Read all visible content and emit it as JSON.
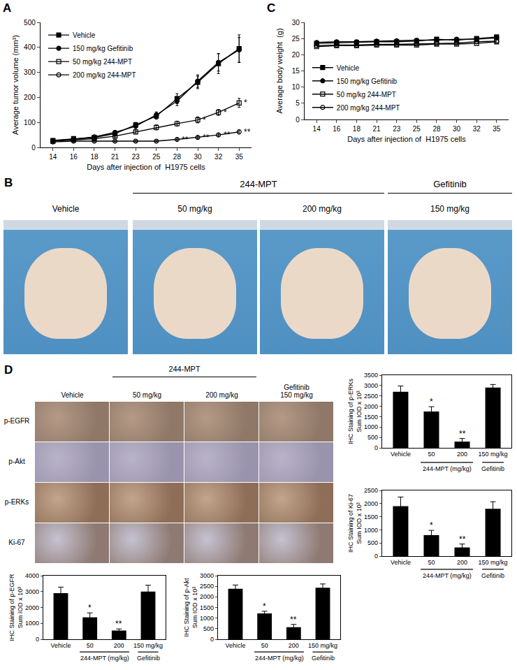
{
  "chart_data": [
    {
      "type": "line",
      "panel": "A",
      "x_label": "Days after injection of  H1975 cells",
      "y_label": "Average tumor volume (mm³)",
      "categories": [
        "14",
        "16",
        "18",
        "21",
        "23",
        "25",
        "28",
        "30",
        "32",
        "35"
      ],
      "ylim": [
        0,
        500
      ],
      "yticks": [
        0,
        100,
        200,
        300,
        400,
        500
      ],
      "legend": "top left",
      "grid": false,
      "series": [
        {
          "name": "Vehicle",
          "color": "#000000",
          "marker": "square",
          "values": [
            28,
            35,
            40,
            55,
            90,
            125,
            195,
            260,
            335,
            395
          ],
          "errors": [
            5,
            5,
            6,
            8,
            10,
            12,
            20,
            25,
            40,
            55
          ]
        },
        {
          "name": "150 mg/kg Gefitinib",
          "color": "#000000",
          "marker": "circle",
          "values": [
            27,
            33,
            42,
            60,
            85,
            130,
            185,
            265,
            340,
            390
          ],
          "errors": [
            5,
            5,
            6,
            8,
            10,
            12,
            18,
            25,
            35,
            50
          ]
        },
        {
          "name": "50 mg/kg 244-MPT",
          "color": "#000000",
          "marker": "open square",
          "values": [
            25,
            30,
            35,
            45,
            62,
            80,
            95,
            110,
            140,
            178
          ],
          "errors": [
            3,
            4,
            5,
            6,
            8,
            10,
            10,
            12,
            12,
            18
          ]
        },
        {
          "name": "200 mg/kg 244-MPT",
          "color": "#000000",
          "marker": "open circle",
          "values": [
            22,
            25,
            25,
            25,
            25,
            25,
            32,
            40,
            50,
            62
          ],
          "errors": [
            3,
            3,
            3,
            3,
            3,
            3,
            5,
            5,
            6,
            8
          ]
        }
      ],
      "annotations": [
        {
          "series": "50 mg/kg 244-MPT",
          "x": "30",
          "text": "*"
        },
        {
          "series": "50 mg/kg 244-MPT",
          "x": "32",
          "text": "*"
        },
        {
          "series": "50 mg/kg 244-MPT",
          "x": "35",
          "text": "*"
        },
        {
          "series": "200 mg/kg 244-MPT",
          "x": "28",
          "text": "**"
        },
        {
          "series": "200 mg/kg 244-MPT",
          "x": "30",
          "text": "**"
        },
        {
          "series": "200 mg/kg 244-MPT",
          "x": "32",
          "text": "**"
        },
        {
          "series": "200 mg/kg 244-MPT",
          "x": "35",
          "text": "**"
        }
      ]
    },
    {
      "type": "line",
      "panel": "C",
      "x_label": "Days after injection of  H1975 cells",
      "y_label": "Average body weight  (g)",
      "categories": [
        "14",
        "16",
        "18",
        "21",
        "23",
        "25",
        "28",
        "30",
        "32",
        "35"
      ],
      "ylim": [
        0,
        30
      ],
      "yticks": [
        0,
        5,
        10,
        15,
        20,
        25,
        30
      ],
      "legend": "bottom left",
      "grid": false,
      "series": [
        {
          "name": "Vehicle",
          "color": "#000000",
          "marker": "square",
          "values": [
            23.5,
            23.7,
            23.8,
            24.0,
            24.0,
            24.2,
            24.8,
            24.5,
            25.0,
            25.5
          ]
        },
        {
          "name": "150 mg/kg Gefitinib",
          "color": "#000000",
          "marker": "circle",
          "values": [
            23.8,
            24.0,
            24.0,
            24.2,
            24.3,
            24.5,
            24.5,
            24.8,
            24.8,
            25.2
          ]
        },
        {
          "name": "50 mg/kg 244-MPT",
          "color": "#000000",
          "marker": "open square",
          "values": [
            22.5,
            22.8,
            22.8,
            23.0,
            23.0,
            23.0,
            23.3,
            23.3,
            23.5,
            24.0
          ]
        },
        {
          "name": "200 mg/kg 244-MPT",
          "color": "#000000",
          "marker": "open circle",
          "values": [
            22.8,
            23.0,
            23.0,
            23.2,
            23.2,
            23.3,
            23.5,
            23.6,
            24.0,
            24.2
          ]
        }
      ]
    },
    {
      "type": "bar",
      "y_label": "IHC Staining of p-ERKs\nSum IOD x 10³",
      "categories": [
        "Vehicle",
        "50",
        "200",
        "150 mg/kg"
      ],
      "values": [
        2700,
        1750,
        300,
        2900
      ],
      "errors": [
        280,
        230,
        150,
        150
      ],
      "color": "#000000",
      "ylim": [
        0,
        3500
      ],
      "yticks": [
        0,
        500,
        1000,
        1500,
        2000,
        2500,
        3000,
        3500
      ],
      "group_labels": [
        {
          "text": "244-MPT (mg/kg)",
          "from": "50",
          "to": "200"
        },
        {
          "text": "Gefitinib",
          "from": "150 mg/kg",
          "to": "150 mg/kg"
        }
      ],
      "annotations": [
        {
          "x": "50",
          "text": "*"
        },
        {
          "x": "200",
          "text": "**"
        }
      ]
    },
    {
      "type": "bar",
      "y_label": "IHC Staining of Ki-67\nSum IOD x 10³",
      "categories": [
        "Vehicle",
        "50",
        "200",
        "150 mg/kg"
      ],
      "values": [
        1900,
        800,
        330,
        1800
      ],
      "errors": [
        350,
        180,
        130,
        270
      ],
      "color": "#000000",
      "ylim": [
        0,
        2500
      ],
      "yticks": [
        0,
        500,
        1000,
        1500,
        2000,
        2500
      ],
      "group_labels": [
        {
          "text": "244-MPT (mg/kg)",
          "from": "50",
          "to": "200"
        },
        {
          "text": "Gefitinib",
          "from": "150 mg/kg",
          "to": "150 mg/kg"
        }
      ],
      "annotations": [
        {
          "x": "50",
          "text": "*"
        },
        {
          "x": "200",
          "text": "**"
        }
      ]
    },
    {
      "type": "bar",
      "y_label": "IHC Staining of p-EGFR\nSum IOD x 10³",
      "categories": [
        "Vehicle",
        "50",
        "200",
        "150 mg/kg"
      ],
      "values": [
        2900,
        1380,
        550,
        3000
      ],
      "errors": [
        380,
        280,
        100,
        400
      ],
      "color": "#000000",
      "ylim": [
        0,
        4000
      ],
      "yticks": [
        0,
        1000,
        2000,
        3000,
        4000
      ],
      "group_labels": [
        {
          "text": "244-MPT (mg/kg)",
          "from": "50",
          "to": "200"
        },
        {
          "text": "Gefitinib",
          "from": "150 mg/kg",
          "to": "150 mg/kg"
        }
      ],
      "annotations": [
        {
          "x": "50",
          "text": "*"
        },
        {
          "x": "200",
          "text": "**"
        }
      ]
    },
    {
      "type": "bar",
      "y_label": "IHC Staining of p-Akt\nSum IOD x 10³",
      "categories": [
        "Vehicle",
        "50",
        "200",
        "150 mg/kg"
      ],
      "values": [
        2380,
        1220,
        570,
        2430
      ],
      "errors": [
        180,
        100,
        130,
        180
      ],
      "color": "#000000",
      "ylim": [
        0,
        3000
      ],
      "yticks": [
        0,
        500,
        1000,
        1500,
        2000,
        2500,
        3000
      ],
      "group_labels": [
        {
          "text": "244-MPT (mg/kg)",
          "from": "50",
          "to": "200"
        },
        {
          "text": "Gefitinib",
          "from": "150 mg/kg",
          "to": "150 mg/kg"
        }
      ],
      "annotations": [
        {
          "x": "50",
          "text": "*"
        },
        {
          "x": "200",
          "text": "**"
        }
      ]
    }
  ],
  "figure_b": {
    "panel": "B",
    "columns": [
      "Vehicle",
      "50 mg/kg",
      "200 mg/kg",
      "150 mg/kg"
    ],
    "groups": [
      {
        "text": "244-MPT",
        "from": "50 mg/kg",
        "to": "200 mg/kg"
      },
      {
        "text": "Gefitinib",
        "from": "150 mg/kg",
        "to": "150 mg/kg"
      }
    ]
  },
  "figure_d": {
    "panel": "D",
    "columns": [
      "Vehicle",
      "50 mg/kg",
      "200 mg/kg",
      "Gefitinib\n150 mg/kg"
    ],
    "groups": [
      {
        "text": "244-MPT",
        "from": "50 mg/kg",
        "to": "200 mg/kg"
      }
    ],
    "rows": [
      "p-EGFR",
      "p-Akt",
      "p-ERKs",
      "Ki-67"
    ]
  }
}
